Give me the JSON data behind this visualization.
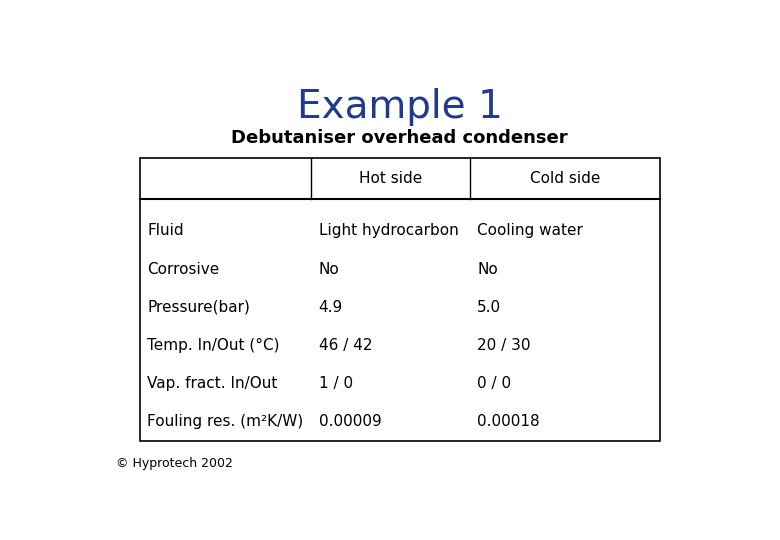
{
  "title": "Example 1",
  "title_color": "#1F3A8F",
  "subtitle": "Debutaniser overhead condenser",
  "subtitle_fontsize": 13,
  "title_fontsize": 28,
  "background_color": "#ffffff",
  "footer": "© Hyprotech 2002",
  "col_headers": [
    "",
    "Hot side",
    "Cold side"
  ],
  "rows": [
    [
      "Fluid",
      "Light hydrocarbon",
      "Cooling water"
    ],
    [
      "Corrosive",
      "No",
      "No"
    ],
    [
      "Pressure(bar)",
      "4.9",
      "5.0"
    ],
    [
      "Temp. In/Out (°C)",
      "46 / 42",
      "20 / 30"
    ],
    [
      "Vap. fract. In/Out",
      "1 / 0",
      "0 / 0"
    ],
    [
      "Fouling res. (m²K/W)",
      "0.00009",
      "0.00018"
    ]
  ],
  "body_fontsize": 11,
  "header_fontsize": 11
}
